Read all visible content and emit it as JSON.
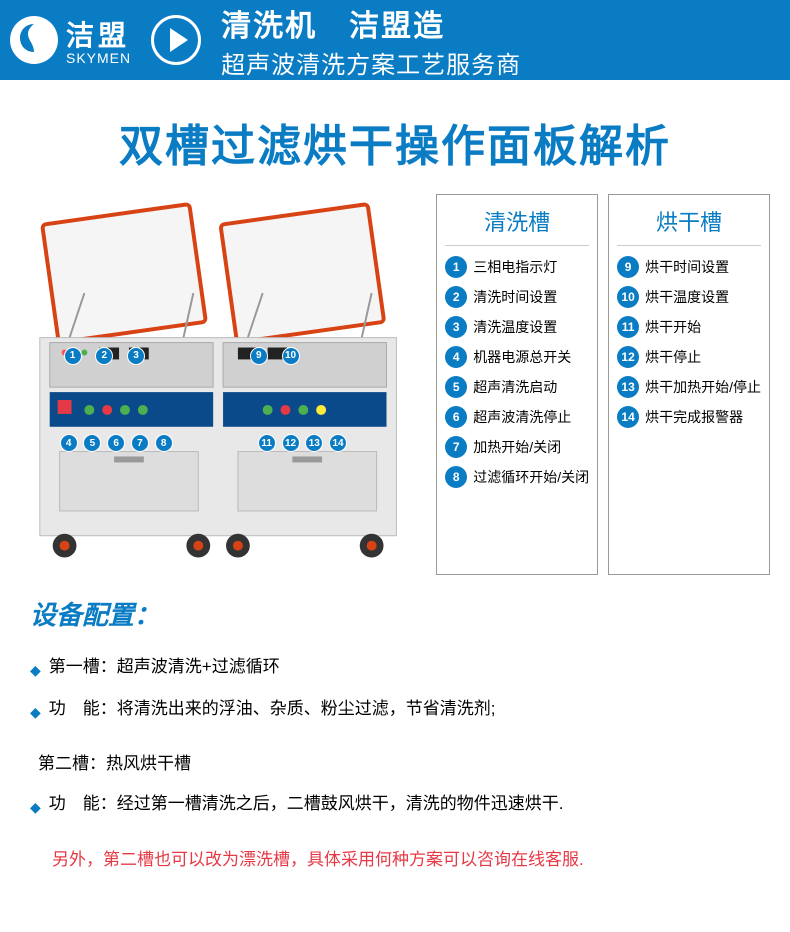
{
  "header": {
    "logo_cn": "洁盟",
    "logo_en": "SKYMEN",
    "line1": "清洗机　洁盟造",
    "line2": "超声波清洗方案工艺服务商"
  },
  "title": "双槽过滤烘干操作面板解析",
  "legend": {
    "col1": {
      "title": "清洗槽",
      "items": [
        {
          "num": "1",
          "text": "三相电指示灯"
        },
        {
          "num": "2",
          "text": "清洗时间设置"
        },
        {
          "num": "3",
          "text": "清洗温度设置"
        },
        {
          "num": "4",
          "text": "机器电源总开关"
        },
        {
          "num": "5",
          "text": "超声清洗启动"
        },
        {
          "num": "6",
          "text": "超声波清洗停止"
        },
        {
          "num": "7",
          "text": "加热开始/关闭"
        },
        {
          "num": "8",
          "text": "过滤循环开始/关闭"
        }
      ]
    },
    "col2": {
      "title": "烘干槽",
      "items": [
        {
          "num": "9",
          "text": "烘干时间设置"
        },
        {
          "num": "10",
          "text": "烘干温度设置"
        },
        {
          "num": "11",
          "text": "烘干开始"
        },
        {
          "num": "12",
          "text": "烘干停止"
        },
        {
          "num": "13",
          "text": "烘干加热开始/停止"
        },
        {
          "num": "14",
          "text": "烘干完成报警器"
        }
      ]
    }
  },
  "config": {
    "title": "设备配置：",
    "items": [
      {
        "label": "第一槽：",
        "text": "超声波清洗+过滤循环"
      },
      {
        "label": "功　能：",
        "text": "将清洗出来的浮油、杂质、粉尘过滤，节省清洗剂;"
      },
      {
        "label": "第二槽：",
        "text": "热风烘干槽",
        "no_diamond": true
      },
      {
        "label": "功　能：",
        "text": "经过第一槽清洗之后，二槽鼓风烘干，清洗的物件迅速烘干."
      }
    ],
    "note": "另外，第二槽也可以改为漂洗槽，具体采用何种方案可以咨询在线客服."
  },
  "machine": {
    "body_color": "#e8e8e8",
    "panel_color": "#0a4a8a",
    "lid_frame_color": "#d84315",
    "callouts_top_left": [
      "1",
      "2",
      "3"
    ],
    "callouts_top_right": [
      "9",
      "10"
    ],
    "callouts_bottom_left": [
      "4",
      "5",
      "6",
      "7",
      "8"
    ],
    "callouts_bottom_right": [
      "11",
      "12",
      "13",
      "14"
    ]
  }
}
